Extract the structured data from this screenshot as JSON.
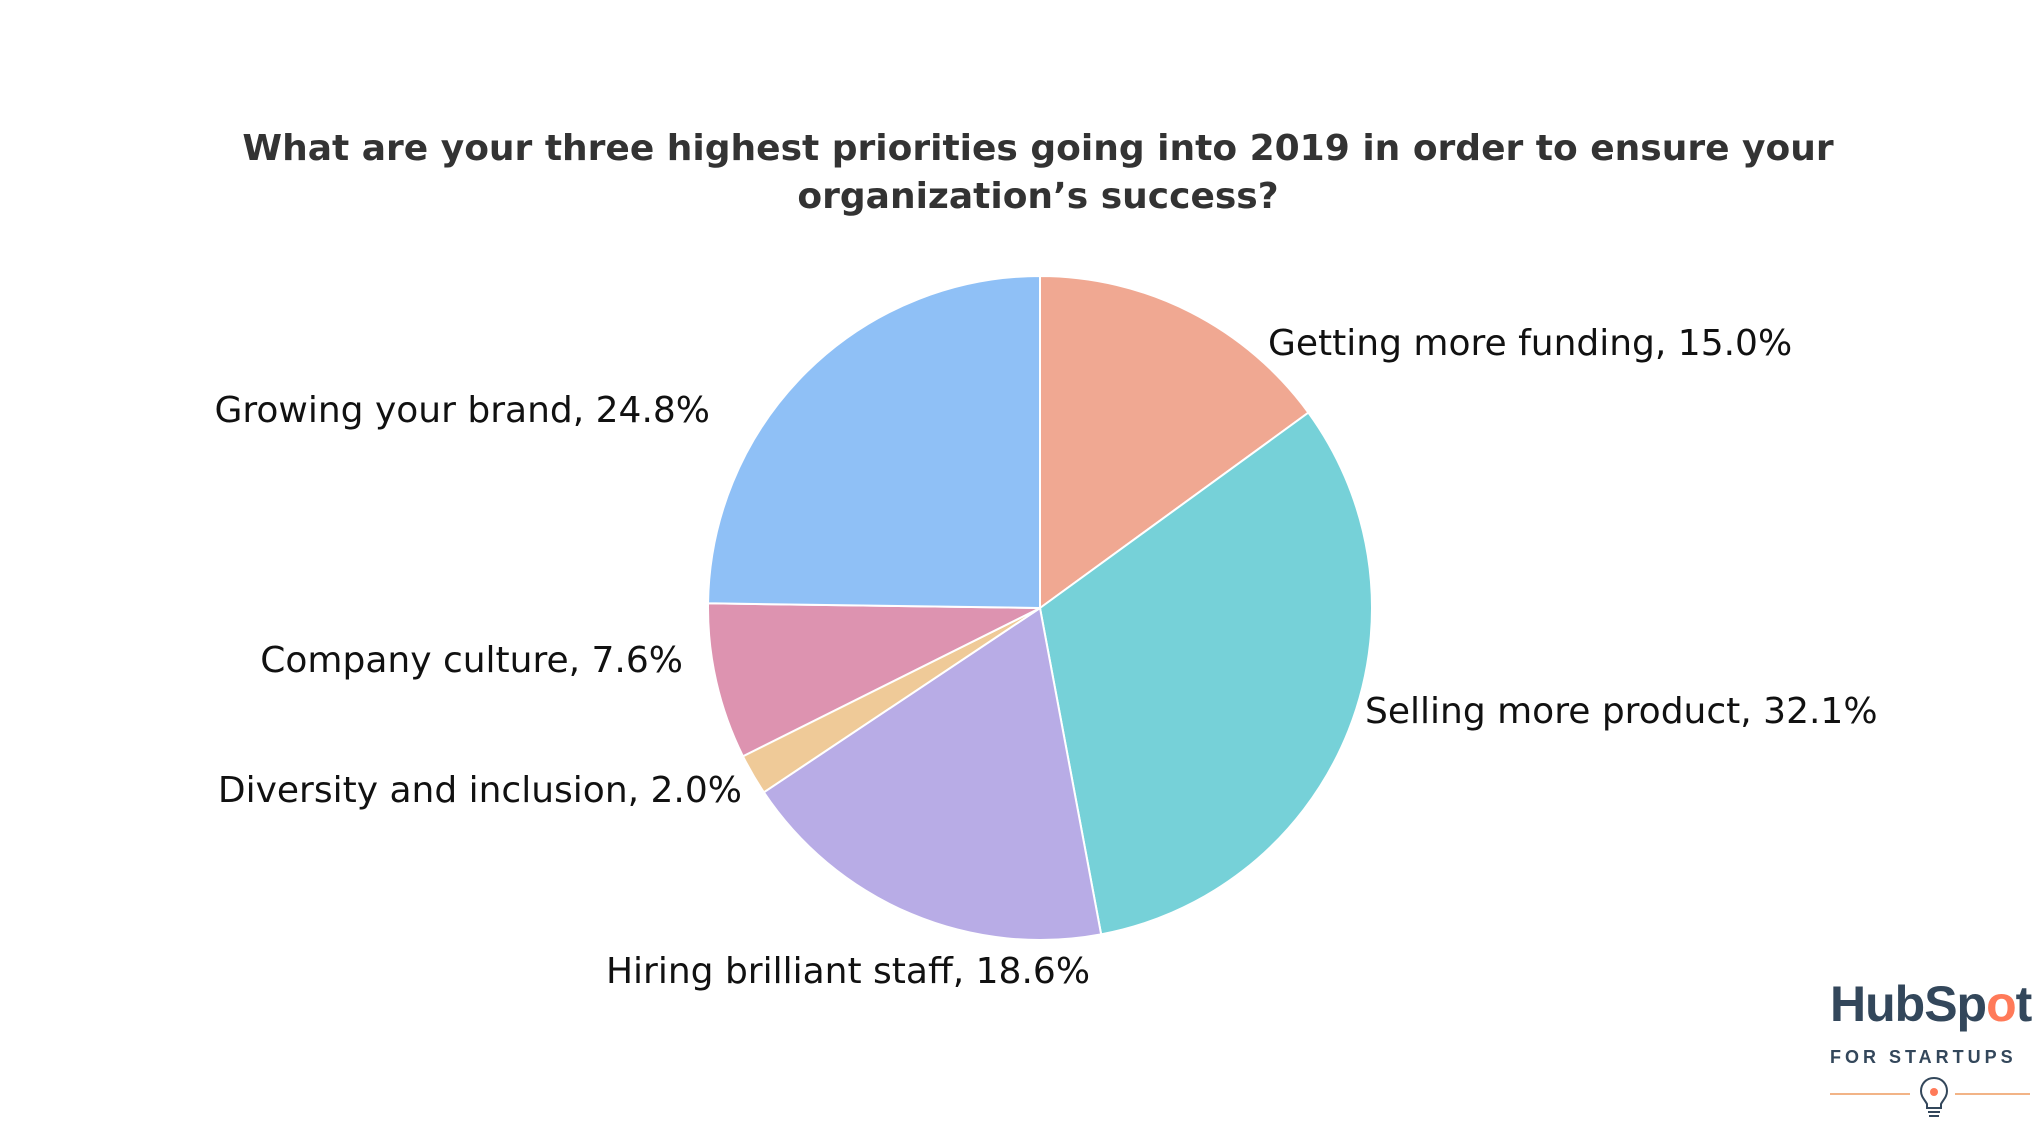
{
  "chart_data": {
    "type": "pie",
    "title": "What are your three highest priorities going into 2019 in order to ensure your organization’s success?",
    "slices": [
      {
        "label": "Getting more funding",
        "value": 15.0,
        "color": "#f0a892",
        "display": "Getting more funding, 15.0%"
      },
      {
        "label": "Selling more product",
        "value": 32.1,
        "color": "#76d1d8",
        "display": "Selling more product, 32.1%"
      },
      {
        "label": "Hiring brilliant staff",
        "value": 18.6,
        "color": "#b8ace6",
        "display": "Hiring brilliant staff, 18.6%"
      },
      {
        "label": "Diversity and inclusion",
        "value": 2.0,
        "color": "#efca98",
        "display": "Diversity and inclusion, 2.0%"
      },
      {
        "label": "Company culture",
        "value": 7.6,
        "color": "#dd93b0",
        "display": "Company culture, 7.6%"
      },
      {
        "label": "Growing your brand",
        "value": 24.8,
        "color": "#8fc0f6",
        "display": "Growing your brand, 24.8%"
      }
    ],
    "start_angle": "12 o'clock",
    "direction": "clockwise",
    "legend": "none",
    "data_labels": "outside"
  },
  "logo": {
    "brand_text": "HubSpot",
    "subtitle": "FOR STARTUPS",
    "brand_color": "#33475b",
    "accent_color": "#ff7a59"
  }
}
